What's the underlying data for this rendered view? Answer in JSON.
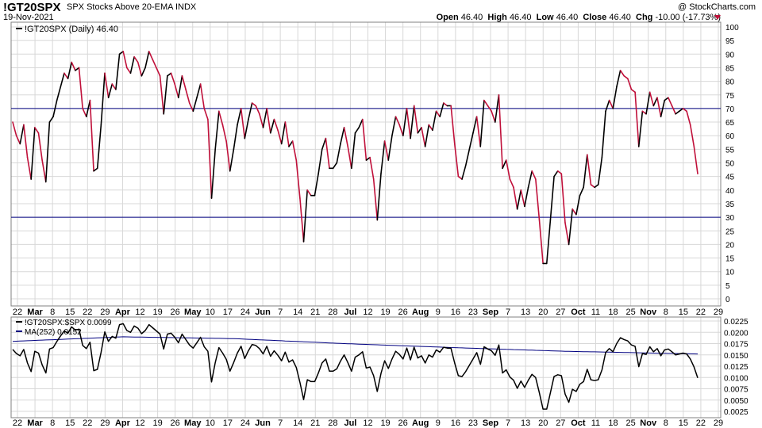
{
  "header": {
    "symbol": "!GT20SPX",
    "description": "SPX Stocks Above 20-EMA  INDX",
    "date": "19-Nov-2021",
    "watermark": "@ StockCharts.com",
    "open_label": "Open",
    "open": "46.40",
    "high_label": "High",
    "high": "46.40",
    "low_label": "Low",
    "low": "46.40",
    "close_label": "Close",
    "close": "46.40",
    "chg_label": "Chg",
    "chg": "-10.00 (-17.73%)"
  },
  "colors": {
    "up": "#000000",
    "down": "#c0103a",
    "ma": "#000080",
    "hline": "#000080",
    "grid": "#d8d8d8",
    "frame": "#808080"
  },
  "chart_data": [
    {
      "type": "line",
      "panel": "main",
      "legend": "!GT20SPX (Daily) 46.40",
      "ylim": [
        0,
        100
      ],
      "yticks": [
        0,
        5,
        10,
        15,
        20,
        25,
        30,
        35,
        40,
        45,
        50,
        55,
        60,
        65,
        70,
        75,
        80,
        85,
        90,
        95,
        100
      ],
      "hlines": [
        30,
        70
      ],
      "grid": true,
      "color_rule": "segment black when rising, red when falling",
      "series": [
        {
          "values": [
            65,
            60,
            57,
            64,
            52,
            44,
            63,
            61,
            51,
            43,
            65,
            67,
            73,
            78,
            83,
            81,
            87,
            84,
            85,
            70,
            67,
            73,
            47,
            48,
            64,
            83,
            74,
            79,
            77,
            90,
            91,
            85,
            83,
            89,
            87,
            82,
            85,
            91,
            88,
            85,
            82,
            68,
            82,
            83,
            79,
            74,
            82,
            77,
            72,
            69,
            74,
            79,
            70,
            66,
            37,
            55,
            69,
            64,
            58,
            47,
            55,
            64,
            70,
            59,
            66,
            72,
            71,
            68,
            63,
            70,
            61,
            66,
            62,
            57,
            65,
            56,
            58,
            51,
            37,
            21,
            40,
            38,
            38,
            46,
            55,
            59,
            48,
            48,
            50,
            57,
            63,
            56,
            48,
            61,
            63,
            66,
            51,
            52,
            44,
            29,
            46,
            58,
            51,
            60,
            67,
            64,
            60,
            70,
            59,
            71,
            61,
            63,
            56,
            64,
            62,
            69,
            67,
            72,
            71,
            71,
            57,
            45,
            44,
            49,
            55,
            61,
            67,
            56,
            73,
            71,
            69,
            65,
            75,
            48,
            51,
            44,
            41,
            33,
            40,
            34,
            41,
            47,
            44,
            29,
            13,
            13,
            29,
            45,
            47,
            46,
            28,
            20,
            33,
            31,
            38,
            41,
            53,
            42,
            41,
            42,
            52,
            69,
            73,
            70,
            78,
            84,
            82,
            81,
            77,
            76,
            56,
            69,
            68,
            76,
            71,
            74,
            67,
            73,
            74,
            71,
            68,
            69,
            70,
            69,
            64,
            56,
            46
          ]
        }
      ],
      "x_labels": [
        "22",
        "Mar",
        "8",
        "15",
        "22",
        "29",
        "Apr",
        "12",
        "19",
        "26",
        "May",
        "10",
        "17",
        "24",
        "Jun",
        "7",
        "14",
        "21",
        "28",
        "Jul",
        "12",
        "19",
        "26",
        "Aug",
        "9",
        "16",
        "23",
        "Sep",
        "7",
        "13",
        "20",
        "27",
        "Oct",
        "11",
        "18",
        "25",
        "Nov",
        "8",
        "15",
        "22",
        "29"
      ]
    },
    {
      "type": "line",
      "panel": "lower",
      "legend_series": "!GT20SPX:$SPX 0.0099",
      "legend_ma": "MA(252) 0.0152",
      "ylim": [
        0.0025,
        0.0225
      ],
      "yticks": [
        "0.0025",
        "0.0050",
        "0.0075",
        "0.0100",
        "0.0125",
        "0.0150",
        "0.0175",
        "0.0200",
        "0.0225"
      ],
      "grid": true,
      "series": [
        {
          "name": "!GT20SPX:$SPX",
          "values": [
            0.0162,
            0.0153,
            0.0148,
            0.0162,
            0.0132,
            0.0113,
            0.0158,
            0.0154,
            0.0128,
            0.011,
            0.0163,
            0.0166,
            0.018,
            0.0192,
            0.0203,
            0.0198,
            0.0212,
            0.0205,
            0.0207,
            0.0171,
            0.0164,
            0.0178,
            0.0115,
            0.0118,
            0.0156,
            0.0201,
            0.018,
            0.0191,
            0.0187,
            0.0217,
            0.0219,
            0.0204,
            0.02,
            0.0214,
            0.0209,
            0.0197,
            0.0204,
            0.0217,
            0.021,
            0.0203,
            0.0196,
            0.0163,
            0.0196,
            0.0198,
            0.0189,
            0.0177,
            0.0196,
            0.0184,
            0.0172,
            0.0165,
            0.0177,
            0.0189,
            0.0168,
            0.0158,
            0.009,
            0.0133,
            0.0166,
            0.0154,
            0.014,
            0.0114,
            0.0133,
            0.0154,
            0.0169,
            0.0142,
            0.0159,
            0.0173,
            0.0171,
            0.0164,
            0.0152,
            0.0169,
            0.0147,
            0.0159,
            0.0149,
            0.0137,
            0.0156,
            0.0134,
            0.0139,
            0.0122,
            0.0089,
            0.0051,
            0.0095,
            0.0091,
            0.0091,
            0.011,
            0.0132,
            0.0141,
            0.0114,
            0.0114,
            0.0119,
            0.0136,
            0.015,
            0.0133,
            0.0114,
            0.0145,
            0.015,
            0.0157,
            0.0121,
            0.0123,
            0.0104,
            0.0069,
            0.0109,
            0.0137,
            0.012,
            0.0141,
            0.0158,
            0.0151,
            0.0141,
            0.0165,
            0.0139,
            0.0167,
            0.0143,
            0.0148,
            0.0132,
            0.015,
            0.0145,
            0.0161,
            0.0156,
            0.0167,
            0.0165,
            0.0165,
            0.0132,
            0.0104,
            0.0102,
            0.0113,
            0.0127,
            0.0141,
            0.0155,
            0.0129,
            0.0168,
            0.0163,
            0.0159,
            0.0149,
            0.0172,
            0.011,
            0.0117,
            0.0101,
            0.0094,
            0.0076,
            0.0092,
            0.0078,
            0.0094,
            0.0107,
            0.01,
            0.0066,
            0.003,
            0.003,
            0.0066,
            0.0102,
            0.0106,
            0.0104,
            0.0063,
            0.0045,
            0.0074,
            0.0069,
            0.0085,
            0.0091,
            0.0118,
            0.0095,
            0.0093,
            0.0095,
            0.0117,
            0.0155,
            0.0164,
            0.0157,
            0.0175,
            0.0188,
            0.0184,
            0.0181,
            0.0172,
            0.0169,
            0.0124,
            0.0153,
            0.0151,
            0.0168,
            0.0157,
            0.0164,
            0.0148,
            0.0161,
            0.0163,
            0.0157,
            0.015,
            0.0152,
            0.0154,
            0.0152,
            0.0141,
            0.0123,
            0.0099
          ]
        },
        {
          "name": "MA(252)",
          "values_sampled": {
            "x": [
              0,
              30,
              60,
              90,
              120,
              150,
              186
            ],
            "y": [
              0.018,
              0.019,
              0.0186,
              0.0175,
              0.0166,
              0.0158,
              0.0152
            ]
          }
        }
      ],
      "x_labels": [
        "22",
        "Mar",
        "8",
        "15",
        "22",
        "29",
        "Apr",
        "12",
        "19",
        "26",
        "May",
        "10",
        "17",
        "24",
        "Jun",
        "7",
        "14",
        "21",
        "28",
        "Jul",
        "12",
        "19",
        "26",
        "Aug",
        "9",
        "16",
        "23",
        "Sep",
        "7",
        "13",
        "20",
        "27",
        "Oct",
        "11",
        "18",
        "25",
        "Nov",
        "8",
        "15",
        "22",
        "29"
      ]
    }
  ]
}
